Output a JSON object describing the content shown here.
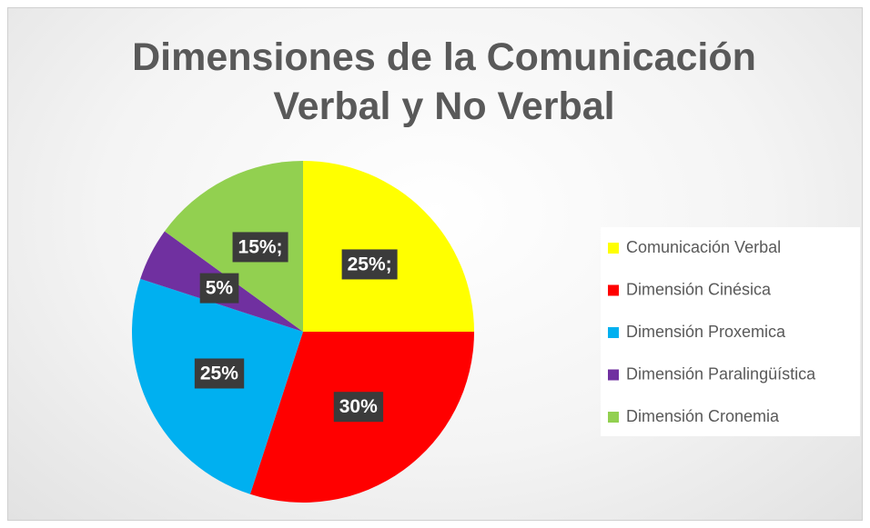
{
  "chart_data": {
    "type": "pie",
    "title": "Dimensiones de la Comunicación Verbal y No Verbal",
    "categories": [
      "Comunicación Verbal",
      "Dimensión Cinésica",
      "Dimensión Proxemica",
      "Dimensión Paralingüística",
      "Dimensión Cronemia"
    ],
    "values": [
      25,
      30,
      25,
      5,
      15
    ],
    "value_labels": [
      "25%;",
      "30%",
      "25%",
      "5%",
      "15%;"
    ],
    "colors": [
      "#ffff00",
      "#ff0000",
      "#00b0f0",
      "#7030a0",
      "#92d050"
    ],
    "legend": "right"
  }
}
